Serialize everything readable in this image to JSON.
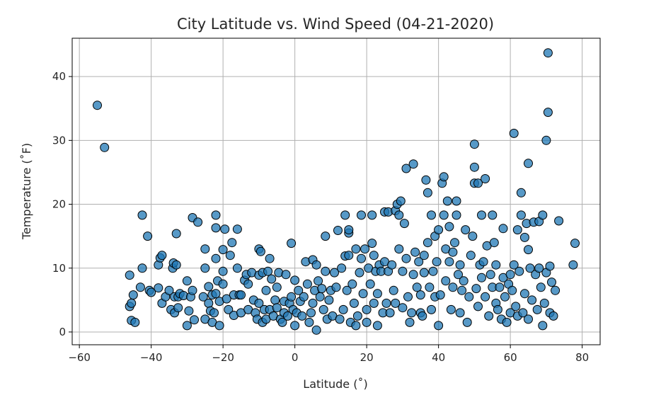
{
  "chart_data": {
    "type": "scatter",
    "title": "City Latitude vs. Wind Speed (04-21-2020)",
    "xlabel": "Latitude (˚)",
    "ylabel": "Temperature (˚F)",
    "xlim": [
      -62,
      85
    ],
    "ylim": [
      -2,
      46
    ],
    "xticks": [
      -60,
      -40,
      -20,
      0,
      20,
      40,
      60,
      80
    ],
    "yticks": [
      0,
      10,
      20,
      30,
      40
    ],
    "xtick_labels": [
      "−60",
      "−40",
      "−20",
      "0",
      "20",
      "40",
      "60",
      "80"
    ],
    "ytick_labels": [
      "0",
      "10",
      "20",
      "30",
      "40"
    ],
    "grid": true,
    "marker_color": "#1f77b4",
    "marker_edge": "#000000",
    "points": [
      [
        -55,
        35.5
      ],
      [
        -53,
        28.9
      ],
      [
        -46,
        8.9
      ],
      [
        -46,
        4.0
      ],
      [
        -45.5,
        4.5
      ],
      [
        -45,
        5.8
      ],
      [
        -45.5,
        1.8
      ],
      [
        -44.5,
        1.5
      ],
      [
        -43,
        7.0
      ],
      [
        -42.5,
        10.0
      ],
      [
        -42.5,
        18.3
      ],
      [
        -41,
        15.0
      ],
      [
        -40.5,
        6.5
      ],
      [
        -40,
        6.2
      ],
      [
        -38,
        6.9
      ],
      [
        -38,
        10.5
      ],
      [
        -37.5,
        11.6
      ],
      [
        -37,
        12.0
      ],
      [
        -37,
        4.5
      ],
      [
        -36,
        5.5
      ],
      [
        -35,
        6.5
      ],
      [
        -34.5,
        3.5
      ],
      [
        -34,
        10.0
      ],
      [
        -33.8,
        10.8
      ],
      [
        -33.5,
        5.5
      ],
      [
        -33.5,
        3.0
      ],
      [
        -33,
        15.4
      ],
      [
        -33,
        10.5
      ],
      [
        -32.5,
        5.5
      ],
      [
        -32.5,
        3.8
      ],
      [
        -32,
        6.0
      ],
      [
        -31,
        5.7
      ],
      [
        -30,
        8.0
      ],
      [
        -30,
        1.0
      ],
      [
        -29.5,
        3.3
      ],
      [
        -29,
        5.5
      ],
      [
        -28.5,
        6.5
      ],
      [
        -28,
        1.9
      ],
      [
        -28.5,
        17.9
      ],
      [
        -27,
        17.2
      ],
      [
        -25,
        10.0
      ],
      [
        -25,
        13.0
      ],
      [
        -25.5,
        5.5
      ],
      [
        -25,
        2.0
      ],
      [
        -24,
        7.1
      ],
      [
        -24,
        4.5
      ],
      [
        -23.5,
        3.3
      ],
      [
        -23,
        5.8
      ],
      [
        -23,
        1.5
      ],
      [
        -22.5,
        3.0
      ],
      [
        -22,
        18.3
      ],
      [
        -22,
        16.3
      ],
      [
        -22,
        11.5
      ],
      [
        -22,
        6.0
      ],
      [
        -21.5,
        8.0
      ],
      [
        -21,
        4.8
      ],
      [
        -21,
        1.0
      ],
      [
        -20,
        12.9
      ],
      [
        -20,
        9.5
      ],
      [
        -20,
        7.5
      ],
      [
        -19.5,
        16.1
      ],
      [
        -19,
        5.2
      ],
      [
        -18.5,
        3.5
      ],
      [
        -18,
        12.0
      ],
      [
        -17.5,
        14.0
      ],
      [
        -17,
        2.6
      ],
      [
        -17,
        5.8
      ],
      [
        -16,
        16.1
      ],
      [
        -16,
        10.0
      ],
      [
        -15.5,
        5.8
      ],
      [
        -15,
        3.0
      ],
      [
        -15,
        5.8
      ],
      [
        -14,
        8.1
      ],
      [
        -13.5,
        9.0
      ],
      [
        -13,
        3.5
      ],
      [
        -13,
        7.5
      ],
      [
        -12,
        9.3
      ],
      [
        -11.5,
        5.0
      ],
      [
        -11,
        3.0
      ],
      [
        -10.5,
        2.0
      ],
      [
        -10,
        8.9
      ],
      [
        -10,
        13.0
      ],
      [
        -10,
        4.5
      ],
      [
        -9.5,
        12.6
      ],
      [
        -9,
        9.3
      ],
      [
        -9,
        1.5
      ],
      [
        -8.5,
        3.5
      ],
      [
        -8,
        2.0
      ],
      [
        -8,
        6.5
      ],
      [
        -7.5,
        9.5
      ],
      [
        -7,
        11.5
      ],
      [
        -7,
        3.5
      ],
      [
        -6.5,
        8.3
      ],
      [
        -6,
        2.5
      ],
      [
        -5.5,
        5.0
      ],
      [
        -5,
        7.0
      ],
      [
        -5,
        3.8
      ],
      [
        -4.5,
        9.3
      ],
      [
        -4,
        2.0
      ],
      [
        -3.5,
        1.5
      ],
      [
        -3,
        4.8
      ],
      [
        -3,
        3.0
      ],
      [
        -2.5,
        9.0
      ],
      [
        -2,
        2.5
      ],
      [
        -1.5,
        4.5
      ],
      [
        -1,
        5.5
      ],
      [
        -1,
        13.9
      ],
      [
        -0.5,
        3.5
      ],
      [
        0,
        1.0
      ],
      [
        0,
        8.1
      ],
      [
        0.5,
        3.0
      ],
      [
        1,
        6.5
      ],
      [
        1.5,
        4.8
      ],
      [
        2,
        2.5
      ],
      [
        2.5,
        5.5
      ],
      [
        3,
        11.0
      ],
      [
        3.5,
        7.5
      ],
      [
        4,
        1.5
      ],
      [
        4.5,
        3.0
      ],
      [
        5,
        11.3
      ],
      [
        5,
        4.5
      ],
      [
        5.5,
        6.5
      ],
      [
        6,
        10.5
      ],
      [
        6,
        0.3
      ],
      [
        6.5,
        8.0
      ],
      [
        7,
        5.5
      ],
      [
        7.5,
        6.8
      ],
      [
        8,
        3.5
      ],
      [
        8.5,
        15.0
      ],
      [
        8.5,
        9.5
      ],
      [
        9,
        2.0
      ],
      [
        9.5,
        5.0
      ],
      [
        10,
        6.5
      ],
      [
        10.5,
        2.5
      ],
      [
        11,
        9.3
      ],
      [
        11.5,
        7.0
      ],
      [
        12,
        15.9
      ],
      [
        12.5,
        2.0
      ],
      [
        13,
        10.0
      ],
      [
        13.5,
        3.5
      ],
      [
        14,
        11.9
      ],
      [
        14,
        18.3
      ],
      [
        14.5,
        6.5
      ],
      [
        15,
        15.5
      ],
      [
        15,
        16.0
      ],
      [
        15,
        12.0
      ],
      [
        15.5,
        1.5
      ],
      [
        16,
        7.5
      ],
      [
        16.5,
        4.5
      ],
      [
        17,
        13.0
      ],
      [
        17,
        1.0
      ],
      [
        17.5,
        2.5
      ],
      [
        18,
        9.3
      ],
      [
        18.5,
        18.3
      ],
      [
        18.5,
        11.5
      ],
      [
        19,
        6.0
      ],
      [
        19.5,
        13.0
      ],
      [
        20,
        3.5
      ],
      [
        20,
        1.5
      ],
      [
        20.5,
        10.0
      ],
      [
        21,
        7.5
      ],
      [
        21.5,
        18.3
      ],
      [
        21.5,
        13.9
      ],
      [
        22,
        4.5
      ],
      [
        22,
        12.0
      ],
      [
        22.5,
        9.5
      ],
      [
        23,
        1.0
      ],
      [
        23,
        6.0
      ],
      [
        23.5,
        10.5
      ],
      [
        24,
        9.5
      ],
      [
        24.5,
        3.0
      ],
      [
        25,
        18.8
      ],
      [
        25,
        11.0
      ],
      [
        25.5,
        4.5
      ],
      [
        26,
        9.5
      ],
      [
        26,
        18.8
      ],
      [
        26.5,
        3.0
      ],
      [
        27,
        10.5
      ],
      [
        27.5,
        6.5
      ],
      [
        28,
        19.0
      ],
      [
        28,
        4.5
      ],
      [
        28.5,
        20.0
      ],
      [
        29,
        18.3
      ],
      [
        29,
        13.0
      ],
      [
        29.5,
        20.5
      ],
      [
        30,
        9.5
      ],
      [
        30,
        3.8
      ],
      [
        30.5,
        17.0
      ],
      [
        31,
        25.6
      ],
      [
        31,
        11.5
      ],
      [
        31.5,
        5.5
      ],
      [
        32,
        1.5
      ],
      [
        32.5,
        3.0
      ],
      [
        33,
        26.3
      ],
      [
        33,
        9.0
      ],
      [
        33.5,
        12.5
      ],
      [
        34,
        7.0
      ],
      [
        34.5,
        11.0
      ],
      [
        35,
        3.0
      ],
      [
        35,
        5.8
      ],
      [
        35.5,
        2.5
      ],
      [
        36,
        9.3
      ],
      [
        36,
        12.0
      ],
      [
        36.5,
        23.8
      ],
      [
        37,
        21.8
      ],
      [
        37,
        14.0
      ],
      [
        37.5,
        7.0
      ],
      [
        38,
        18.3
      ],
      [
        38,
        3.5
      ],
      [
        38.5,
        9.5
      ],
      [
        39,
        15.0
      ],
      [
        39,
        5.5
      ],
      [
        39.5,
        11.0
      ],
      [
        40,
        16.0
      ],
      [
        40,
        1.0
      ],
      [
        40.5,
        5.8
      ],
      [
        41,
        23.3
      ],
      [
        41.5,
        24.3
      ],
      [
        41.5,
        18.3
      ],
      [
        42,
        13.0
      ],
      [
        42,
        8.0
      ],
      [
        42.5,
        20.5
      ],
      [
        43,
        11.0
      ],
      [
        43,
        16.5
      ],
      [
        43.5,
        3.5
      ],
      [
        44,
        12.5
      ],
      [
        44,
        7.0
      ],
      [
        44.5,
        14.0
      ],
      [
        45,
        20.5
      ],
      [
        45,
        18.3
      ],
      [
        45.5,
        9.0
      ],
      [
        46,
        10.5
      ],
      [
        46,
        3.0
      ],
      [
        46.5,
        6.5
      ],
      [
        47,
        8.0
      ],
      [
        47.5,
        16.0
      ],
      [
        48,
        1.5
      ],
      [
        48.5,
        5.5
      ],
      [
        49,
        12.0
      ],
      [
        49.5,
        15.0
      ],
      [
        50,
        23.3
      ],
      [
        50,
        25.8
      ],
      [
        50,
        29.4
      ],
      [
        50.5,
        6.8
      ],
      [
        51,
        23.3
      ],
      [
        51,
        4.0
      ],
      [
        51.5,
        10.5
      ],
      [
        52,
        18.3
      ],
      [
        52,
        8.5
      ],
      [
        52.5,
        11.0
      ],
      [
        53,
        24.0
      ],
      [
        53,
        5.5
      ],
      [
        53.5,
        13.5
      ],
      [
        54,
        2.5
      ],
      [
        54.5,
        9.0
      ],
      [
        55,
        7.0
      ],
      [
        55,
        18.3
      ],
      [
        55.5,
        14.0
      ],
      [
        56,
        4.5
      ],
      [
        56,
        10.5
      ],
      [
        56.5,
        3.5
      ],
      [
        57,
        7.0
      ],
      [
        57.5,
        2.0
      ],
      [
        58,
        16.2
      ],
      [
        58,
        8.5
      ],
      [
        58.5,
        5.5
      ],
      [
        59,
        1.5
      ],
      [
        59.5,
        7.5
      ],
      [
        60,
        9.0
      ],
      [
        60,
        3.0
      ],
      [
        60.5,
        6.5
      ],
      [
        61,
        31.1
      ],
      [
        61,
        10.5
      ],
      [
        61.5,
        4.0
      ],
      [
        62,
        16.0
      ],
      [
        62,
        2.5
      ],
      [
        62.5,
        9.5
      ],
      [
        63,
        21.8
      ],
      [
        63,
        18.3
      ],
      [
        63.5,
        3.0
      ],
      [
        64,
        14.8
      ],
      [
        64,
        6.0
      ],
      [
        64.5,
        17.0
      ],
      [
        65,
        26.4
      ],
      [
        65,
        12.9
      ],
      [
        65,
        2.0
      ],
      [
        65.5,
        10.0
      ],
      [
        66,
        5.0
      ],
      [
        66.5,
        17.2
      ],
      [
        67,
        9.0
      ],
      [
        67.5,
        3.5
      ],
      [
        68,
        17.3
      ],
      [
        68,
        10.0
      ],
      [
        68.5,
        7.0
      ],
      [
        69,
        1.0
      ],
      [
        69,
        18.3
      ],
      [
        69.5,
        4.5
      ],
      [
        70,
        30.0
      ],
      [
        70,
        9.3
      ],
      [
        70.5,
        34.4
      ],
      [
        70.5,
        43.7
      ],
      [
        71,
        10.3
      ],
      [
        71,
        3.0
      ],
      [
        71.5,
        7.8
      ],
      [
        72,
        2.5
      ],
      [
        72.5,
        6.5
      ],
      [
        73.5,
        17.4
      ],
      [
        77.5,
        10.5
      ],
      [
        78,
        13.9
      ]
    ]
  }
}
